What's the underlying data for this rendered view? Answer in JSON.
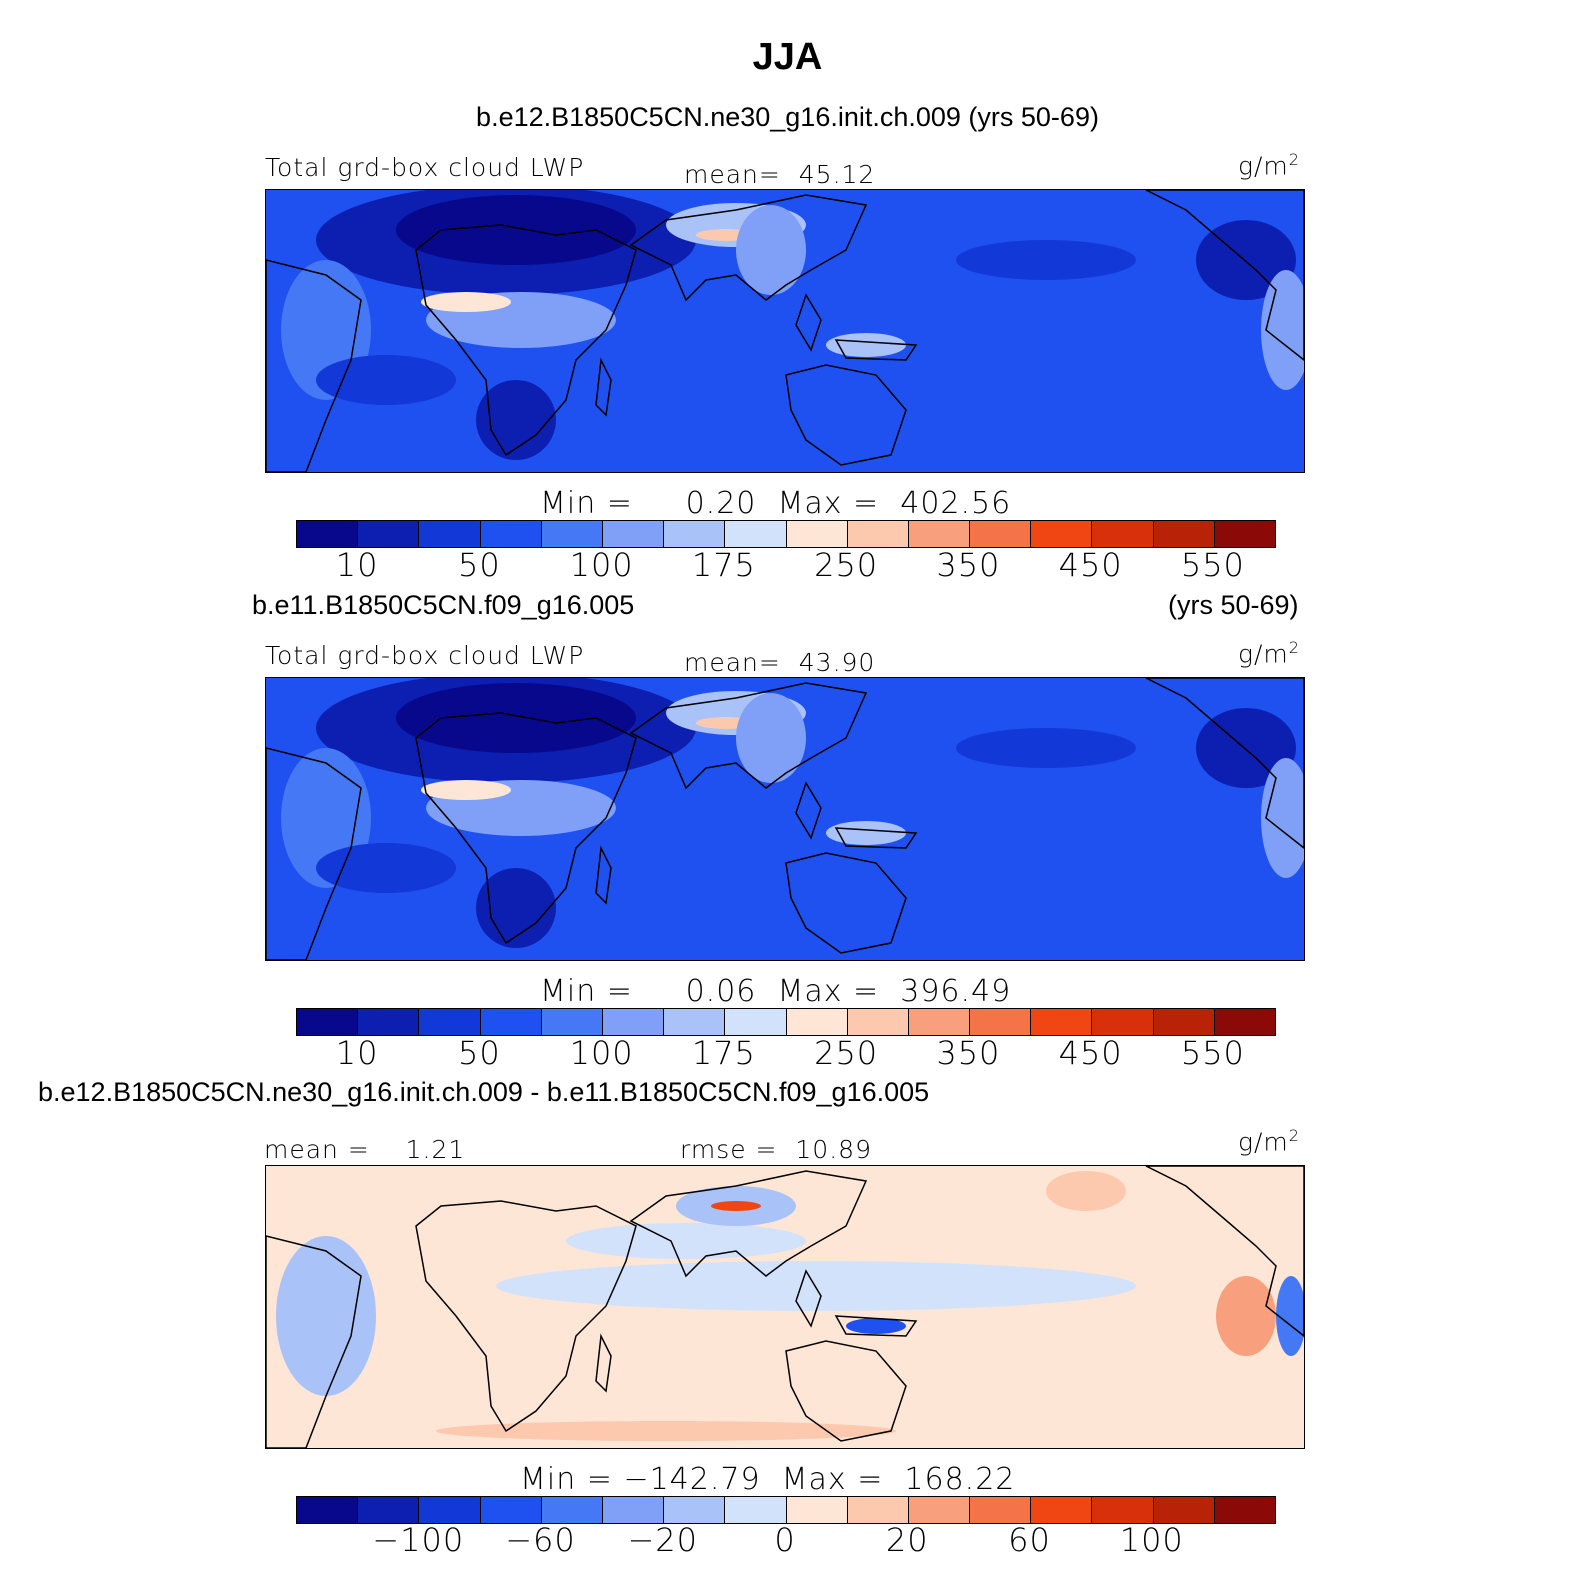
{
  "title": "JJA",
  "colors": {
    "scale": [
      "#08088c",
      "#0c1fb0",
      "#1238d8",
      "#1f50f0",
      "#4478f4",
      "#7fa0f6",
      "#a9c2f8",
      "#d2e2fa",
      "#fde6d6",
      "#fcc8ae",
      "#f8a07e",
      "#f57348",
      "#f04614",
      "#d8300a",
      "#b82206",
      "#8b0a08"
    ],
    "land": "#000000"
  },
  "chart_data": [
    {
      "type": "heatmap",
      "case": "b.e12.B1850C5CN.ne30_g16.init.ch.009 (yrs 50-69)",
      "variable": "Total grd-box cloud LWP",
      "mean_label": "mean=",
      "mean": "45.12",
      "units": "g/m",
      "units_exp": "2",
      "min_label": "Min =",
      "min": "0.20",
      "max_label": "Max =",
      "max": "402.56",
      "colorbar_ticks": [
        "10",
        "50",
        "100",
        "175",
        "250",
        "350",
        "450",
        "550"
      ],
      "tick_bins": [
        0,
        2,
        4,
        6,
        8,
        10,
        12,
        14
      ]
    },
    {
      "type": "heatmap",
      "case": "b.e11.B1850C5CN.f09_g16.005",
      "years": "(yrs 50-69)",
      "variable": "Total grd-box cloud LWP",
      "mean_label": "mean=",
      "mean": "43.90",
      "units": "g/m",
      "units_exp": "2",
      "min_label": "Min =",
      "min": "0.06",
      "max_label": "Max =",
      "max": "396.49",
      "colorbar_ticks": [
        "10",
        "50",
        "100",
        "175",
        "250",
        "350",
        "450",
        "550"
      ],
      "tick_bins": [
        0,
        2,
        4,
        6,
        8,
        10,
        12,
        14
      ]
    },
    {
      "type": "heatmap",
      "case": "b.e12.B1850C5CN.ne30_g16.init.ch.009 - b.e11.B1850C5CN.f09_g16.005",
      "mean_label": "mean =",
      "mean": "1.21",
      "rmse_label": "rmse =",
      "rmse": "10.89",
      "units": "g/m",
      "units_exp": "2",
      "min_label": "Min =",
      "min": "−142.79",
      "max_label": "Max =",
      "max": "168.22",
      "colorbar_ticks": [
        "−100",
        "−60",
        "−20",
        "0",
        "20",
        "60",
        "100"
      ],
      "tick_bins": [
        1,
        3,
        5,
        7,
        9,
        11,
        13
      ]
    }
  ]
}
